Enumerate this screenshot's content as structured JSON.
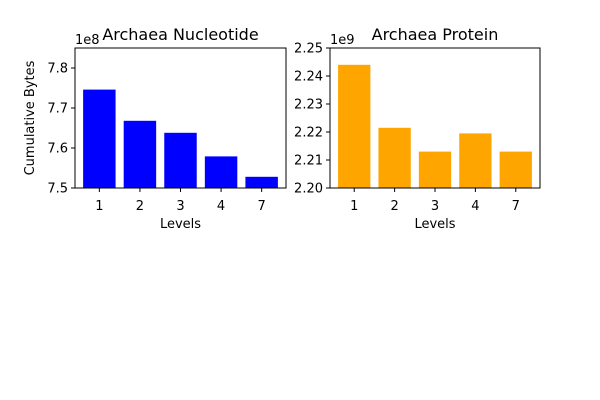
{
  "chart_data": [
    {
      "type": "bar",
      "title": "Archaea Nucleotide",
      "xlabel": "Levels",
      "ylabel": "Cumulative Bytes",
      "offset_text": "1e8",
      "categories": [
        "1",
        "2",
        "3",
        "4",
        "7"
      ],
      "values": [
        774600000,
        766800000,
        763800000,
        757900000,
        752800000
      ],
      "ylim": [
        750000000,
        785000000
      ],
      "yticks": [
        750000000,
        760000000,
        770000000,
        780000000
      ],
      "ytick_labels": [
        "7.5",
        "7.6",
        "7.7",
        "7.8"
      ],
      "color": "#0000ff",
      "grid": false
    },
    {
      "type": "bar",
      "title": "Archaea Protein",
      "xlabel": "Levels",
      "ylabel": "",
      "offset_text": "1e9",
      "categories": [
        "1",
        "2",
        "3",
        "4",
        "7"
      ],
      "values": [
        2244000000,
        2221500000,
        2213000000,
        2219500000,
        2213000000
      ],
      "ylim": [
        2200000000,
        2250000000
      ],
      "yticks": [
        2200000000,
        2210000000,
        2220000000,
        2230000000,
        2240000000,
        2250000000
      ],
      "ytick_labels": [
        "2.20",
        "2.21",
        "2.22",
        "2.23",
        "2.24",
        "2.25"
      ],
      "color": "#ffa500",
      "grid": false
    }
  ]
}
